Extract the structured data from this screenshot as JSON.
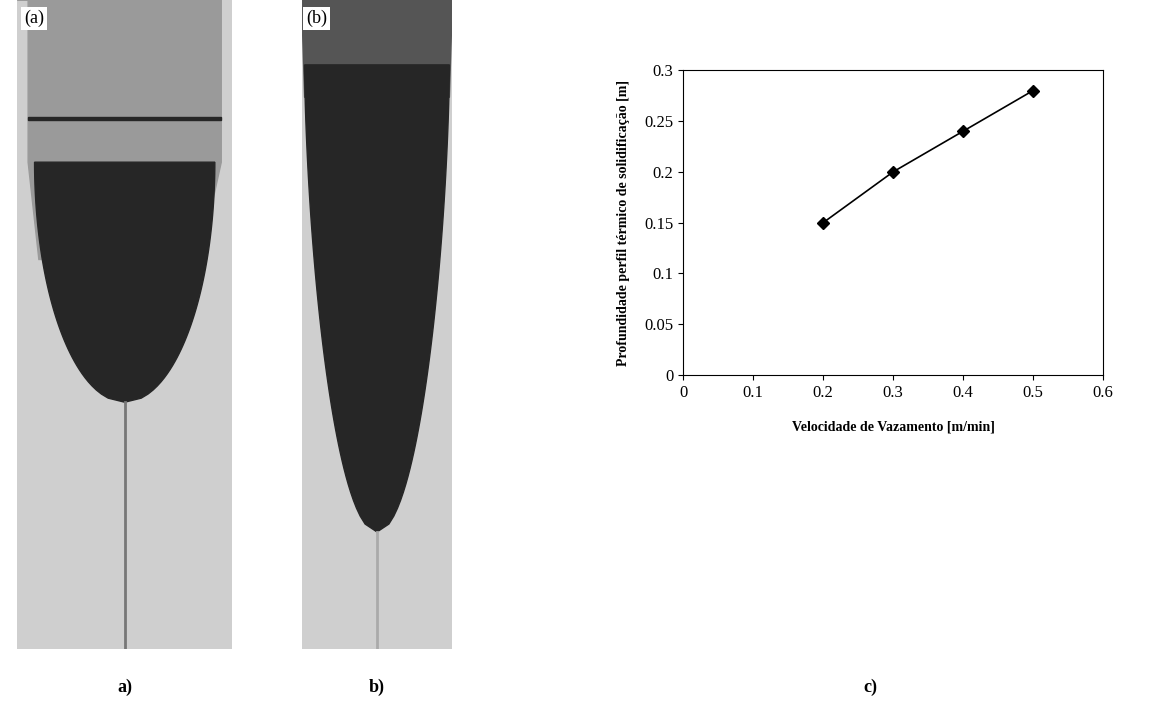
{
  "panels": [
    {
      "label": "a)",
      "inset_label": "(a)"
    },
    {
      "label": "b)",
      "inset_label": "(b)"
    }
  ],
  "chart_label": "c)",
  "chart_data": {
    "type": "line",
    "x_label": "Velocidade de Vazamento [m/min]",
    "y_label": "Profundidade perfil térmico de solidificação [m]",
    "x": [
      0.2,
      0.3,
      0.4,
      0.5
    ],
    "values": [
      0.15,
      0.2,
      0.24,
      0.28
    ],
    "color": "#000000",
    "marker": "diamond",
    "line_style": "solid",
    "xlim": [
      0,
      0.6
    ],
    "ylim": [
      0,
      0.3
    ],
    "xticks": [
      0,
      0.1,
      0.2,
      0.3,
      0.4,
      0.5,
      0.6
    ],
    "yticks": [
      0,
      0.05,
      0.1,
      0.15,
      0.2,
      0.25,
      0.3
    ],
    "grid": false
  }
}
